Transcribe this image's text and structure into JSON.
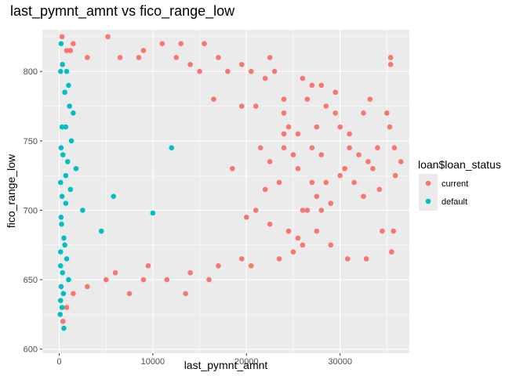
{
  "chart_data": {
    "type": "scatter",
    "title": "last_pymnt_amnt vs fico_range_low",
    "xlabel": "last_pymnt_amnt",
    "ylabel": "fico_range_low",
    "xlim": [
      -1800,
      37400
    ],
    "ylim": [
      597,
      830
    ],
    "x_ticks": [
      0,
      10000,
      20000,
      30000
    ],
    "y_ticks": [
      600,
      650,
      700,
      750,
      800
    ],
    "x_tick_labels": [
      "0",
      "10000",
      "20000",
      "30000"
    ],
    "y_tick_labels": [
      "600",
      "650",
      "700",
      "750",
      "800"
    ],
    "grid": true,
    "panel_background": "#ebebeb",
    "legend": {
      "title": "loan$loan_status",
      "position": "right",
      "entries": [
        {
          "label": "current",
          "color": "#f8766d"
        },
        {
          "label": "default",
          "color": "#00bfc4"
        }
      ]
    },
    "series": [
      {
        "name": "current",
        "color": "#f8766d",
        "points": [
          [
            300,
            825
          ],
          [
            1500,
            820
          ],
          [
            5200,
            825
          ],
          [
            800,
            815
          ],
          [
            1200,
            815
          ],
          [
            3000,
            810
          ],
          [
            6500,
            810
          ],
          [
            11000,
            820
          ],
          [
            13000,
            820
          ],
          [
            15500,
            820
          ],
          [
            9000,
            815
          ],
          [
            17000,
            810
          ],
          [
            19500,
            805
          ],
          [
            20500,
            800
          ],
          [
            22500,
            810
          ],
          [
            23000,
            800
          ],
          [
            15000,
            800
          ],
          [
            35400,
            810
          ],
          [
            35400,
            805
          ],
          [
            22000,
            795
          ],
          [
            26000,
            795
          ],
          [
            28000,
            790
          ],
          [
            29500,
            785
          ],
          [
            24000,
            780
          ],
          [
            26500,
            780
          ],
          [
            33200,
            780
          ],
          [
            28500,
            775
          ],
          [
            32500,
            770
          ],
          [
            35000,
            770
          ],
          [
            24000,
            770
          ],
          [
            21000,
            775
          ],
          [
            27500,
            760
          ],
          [
            30000,
            760
          ],
          [
            35300,
            760
          ],
          [
            25500,
            755
          ],
          [
            24000,
            755
          ],
          [
            27000,
            745
          ],
          [
            31000,
            745
          ],
          [
            25000,
            740
          ],
          [
            28000,
            740
          ],
          [
            32000,
            740
          ],
          [
            34000,
            745
          ],
          [
            35800,
            745
          ],
          [
            36500,
            735
          ],
          [
            30500,
            730
          ],
          [
            33000,
            735
          ],
          [
            25500,
            730
          ],
          [
            23500,
            720
          ],
          [
            27000,
            720
          ],
          [
            31500,
            720
          ],
          [
            34200,
            715
          ],
          [
            32500,
            710
          ],
          [
            35900,
            725
          ],
          [
            33500,
            730
          ],
          [
            29000,
            705
          ],
          [
            26000,
            700
          ],
          [
            21000,
            700
          ],
          [
            22500,
            690
          ],
          [
            24500,
            685
          ],
          [
            25500,
            680
          ],
          [
            27500,
            685
          ],
          [
            29000,
            675
          ],
          [
            30800,
            665
          ],
          [
            34500,
            685
          ],
          [
            35700,
            685
          ],
          [
            35500,
            670
          ],
          [
            32800,
            665
          ],
          [
            23500,
            665
          ],
          [
            25000,
            670
          ],
          [
            19500,
            665
          ],
          [
            17000,
            660
          ],
          [
            14000,
            655
          ],
          [
            11500,
            650
          ],
          [
            9000,
            650
          ],
          [
            5000,
            650
          ],
          [
            7500,
            640
          ],
          [
            13500,
            640
          ],
          [
            1500,
            640
          ],
          [
            800,
            630
          ],
          [
            400,
            620
          ],
          [
            20000,
            695
          ],
          [
            28500,
            720
          ],
          [
            26500,
            700
          ],
          [
            22000,
            715
          ],
          [
            18500,
            730
          ],
          [
            21500,
            745
          ],
          [
            24500,
            760
          ],
          [
            19500,
            775
          ],
          [
            16500,
            780
          ],
          [
            31000,
            755
          ],
          [
            29500,
            770
          ],
          [
            27000,
            790
          ],
          [
            18000,
            800
          ],
          [
            14000,
            805
          ],
          [
            12500,
            810
          ],
          [
            8500,
            810
          ],
          [
            30000,
            725
          ],
          [
            28000,
            700
          ],
          [
            26000,
            675
          ],
          [
            20500,
            660
          ],
          [
            16000,
            650
          ],
          [
            6000,
            655
          ],
          [
            3000,
            645
          ],
          [
            9500,
            660
          ],
          [
            24000,
            745
          ],
          [
            22500,
            735
          ],
          [
            27500,
            710
          ]
        ]
      },
      {
        "name": "default",
        "color": "#00bfc4",
        "points": [
          [
            200,
            820
          ],
          [
            150,
            800
          ],
          [
            1000,
            790
          ],
          [
            800,
            800
          ],
          [
            600,
            785
          ],
          [
            1500,
            770
          ],
          [
            300,
            760
          ],
          [
            700,
            760
          ],
          [
            200,
            745
          ],
          [
            400,
            740
          ],
          [
            900,
            735
          ],
          [
            150,
            720
          ],
          [
            1200,
            715
          ],
          [
            300,
            710
          ],
          [
            700,
            705
          ],
          [
            200,
            695
          ],
          [
            500,
            680
          ],
          [
            150,
            670
          ],
          [
            800,
            665
          ],
          [
            350,
            655
          ],
          [
            1000,
            650
          ],
          [
            200,
            645
          ],
          [
            450,
            640
          ],
          [
            150,
            635
          ],
          [
            300,
            630
          ],
          [
            100,
            625
          ],
          [
            500,
            615
          ],
          [
            12000,
            745
          ],
          [
            5800,
            710
          ],
          [
            10000,
            698
          ],
          [
            4500,
            685
          ],
          [
            1800,
            730
          ],
          [
            2500,
            700
          ],
          [
            600,
            675
          ],
          [
            250,
            690
          ],
          [
            1300,
            750
          ],
          [
            700,
            725
          ],
          [
            150,
            660
          ],
          [
            1100,
            775
          ],
          [
            350,
            805
          ]
        ]
      }
    ]
  }
}
